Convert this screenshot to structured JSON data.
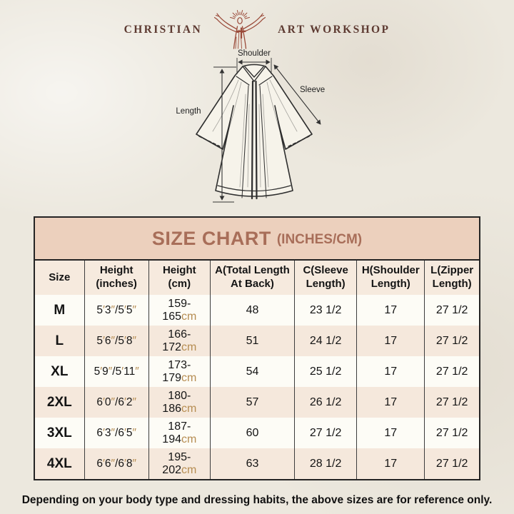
{
  "logo": {
    "left_text": "CHRISTIAN",
    "right_text": "ART WORKSHOP"
  },
  "diagram": {
    "labels": {
      "shoulder": "Shoulder",
      "sleeve": "Sleeve",
      "length": "Length"
    }
  },
  "size_chart": {
    "title": "SIZE CHART",
    "title_suffix": "(INCHES/CM)",
    "columns": [
      "Size",
      "Height (inches)",
      "Height (cm)",
      "A(Total Length At Back)",
      "C(Sleeve Length)",
      "H(Shoulder Length)",
      "L(Zipper Length)"
    ],
    "rows": [
      {
        "size": "M",
        "height_inches": "5′3″/5′5″",
        "height_cm": "159-165cm",
        "total_length_back": "48",
        "sleeve_length": "23 1/2",
        "shoulder_length": "17",
        "zipper_length": "27 1/2"
      },
      {
        "size": "L",
        "height_inches": "5′6″/5′8″",
        "height_cm": "166-172cm",
        "total_length_back": "51",
        "sleeve_length": "24 1/2",
        "shoulder_length": "17",
        "zipper_length": "27 1/2"
      },
      {
        "size": "XL",
        "height_inches": "5′9″/5′11″",
        "height_cm": "173-179cm",
        "total_length_back": "54",
        "sleeve_length": "25 1/2",
        "shoulder_length": "17",
        "zipper_length": "27 1/2"
      },
      {
        "size": "2XL",
        "height_inches": "6′0″/6′2″",
        "height_cm": "180-186cm",
        "total_length_back": "57",
        "sleeve_length": "26 1/2",
        "shoulder_length": "17",
        "zipper_length": "27 1/2"
      },
      {
        "size": "3XL",
        "height_inches": "6′3″/6′5″",
        "height_cm": "187-194cm",
        "total_length_back": "60",
        "sleeve_length": "27 1/2",
        "shoulder_length": "17",
        "zipper_length": "27 1/2"
      },
      {
        "size": "4XL",
        "height_inches": "6′6″/6′8″",
        "height_cm": "195-202cm",
        "total_length_back": "63",
        "sleeve_length": "28 1/2",
        "shoulder_length": "17",
        "zipper_length": "27 1/2"
      }
    ],
    "accent_colors": {
      "title_text": "#a86e59",
      "title_bg": "#ecd0bd",
      "header_bg": "#f6eade",
      "row_alt_bg": "#f5e8dc",
      "unit_text": "#b68d52"
    }
  },
  "footer": {
    "note": "Depending on your body type and dressing habits, the above sizes are for reference only."
  }
}
